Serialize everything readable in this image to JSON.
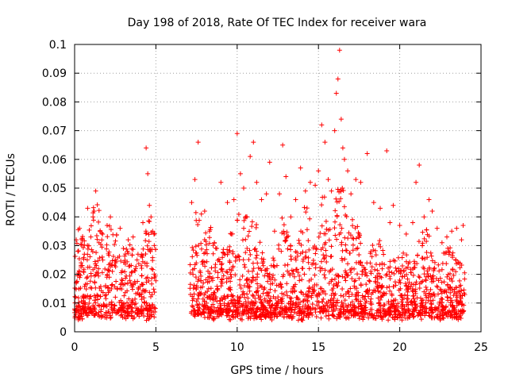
{
  "chart_data": {
    "type": "scatter",
    "title": "Day 198 of 2018, Rate Of TEC Index for receiver wara",
    "xlabel": "GPS time / hours",
    "ylabel": "ROTI / TECUs",
    "xlim": [
      0,
      25
    ],
    "ylim": [
      0,
      0.1
    ],
    "x_ticks": [
      0,
      5,
      10,
      15,
      20,
      25
    ],
    "x_tick_labels": [
      "0",
      "5",
      "10",
      "15",
      "20",
      "25"
    ],
    "y_ticks": [
      0,
      0.01,
      0.02,
      0.03,
      0.04,
      0.05,
      0.06,
      0.07,
      0.08,
      0.09,
      0.1
    ],
    "y_tick_labels": [
      "0",
      "0.01",
      "0.02",
      "0.03",
      "0.04",
      "0.05",
      "0.06",
      "0.07",
      "0.08",
      "0.09",
      "0.1"
    ],
    "grid": true,
    "marker": "+",
    "marker_color": "#ff0000",
    "point_x": [
      0.1,
      0.2,
      0.3,
      0.4,
      0.6,
      0.8,
      1.0,
      1.2,
      1.3,
      1.5,
      1.7,
      2.0,
      2.2,
      2.5,
      2.8,
      3.0,
      3.3,
      3.6,
      3.9,
      4.2,
      4.4,
      4.5,
      4.6,
      4.7,
      4.8,
      4.9,
      7.2,
      7.4,
      7.6,
      7.8,
      8.0,
      8.3,
      8.6,
      9.0,
      9.4,
      9.8,
      10.0,
      10.2,
      10.4,
      10.6,
      10.8,
      11.0,
      11.2,
      11.5,
      11.8,
      12.0,
      12.3,
      12.6,
      12.8,
      13.0,
      13.3,
      13.6,
      13.9,
      14.2,
      14.5,
      14.8,
      15.0,
      15.2,
      15.4,
      15.6,
      15.8,
      16.0,
      16.1,
      16.2,
      16.3,
      16.4,
      16.5,
      16.6,
      16.8,
      17.0,
      17.3,
      17.6,
      18.0,
      18.4,
      18.8,
      19.2,
      19.4,
      19.6,
      20.0,
      20.4,
      20.8,
      21.0,
      21.2,
      21.5,
      21.8,
      22.0,
      22.3,
      22.6,
      22.9,
      23.2,
      23.5,
      23.8,
      23.9
    ],
    "point_y": [
      0.032,
      0.028,
      0.036,
      0.024,
      0.027,
      0.043,
      0.033,
      0.042,
      0.049,
      0.031,
      0.026,
      0.037,
      0.04,
      0.025,
      0.036,
      0.029,
      0.032,
      0.033,
      0.027,
      0.038,
      0.064,
      0.055,
      0.044,
      0.04,
      0.035,
      0.03,
      0.045,
      0.053,
      0.066,
      0.041,
      0.042,
      0.035,
      0.031,
      0.052,
      0.045,
      0.046,
      0.069,
      0.055,
      0.05,
      0.04,
      0.061,
      0.066,
      0.052,
      0.046,
      0.048,
      0.059,
      0.035,
      0.048,
      0.065,
      0.054,
      0.04,
      0.046,
      0.057,
      0.049,
      0.052,
      0.051,
      0.056,
      0.072,
      0.066,
      0.053,
      0.049,
      0.07,
      0.083,
      0.088,
      0.098,
      0.074,
      0.064,
      0.06,
      0.056,
      0.048,
      0.053,
      0.052,
      0.062,
      0.045,
      0.043,
      0.063,
      0.038,
      0.044,
      0.037,
      0.034,
      0.038,
      0.052,
      0.058,
      0.04,
      0.046,
      0.042,
      0.036,
      0.031,
      0.033,
      0.035,
      0.036,
      0.032,
      0.037
    ],
    "gaps": [
      [
        5.0,
        7.1
      ]
    ]
  }
}
